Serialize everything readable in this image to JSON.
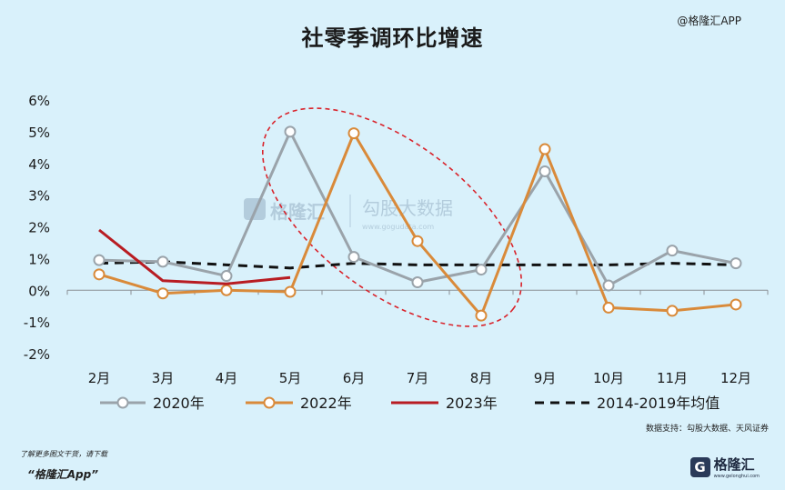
{
  "header": {
    "title": "社零季调环比增速",
    "brand_tag": "@格隆汇APP"
  },
  "watermark": {
    "brand": "格隆汇",
    "site_name": "勾股大数据",
    "site_url": "www.gogudata.com"
  },
  "footer": {
    "hint": "了解更多图文干货，请下载",
    "app_name": "“格隆汇App”",
    "logo_text": "格隆汇",
    "logo_sub": "www.gelonghui.com"
  },
  "chart_data": {
    "type": "line",
    "title": "社零季调环比增速",
    "categories": [
      "2月",
      "3月",
      "4月",
      "5月",
      "6月",
      "7月",
      "8月",
      "9月",
      "10月",
      "11月",
      "12月"
    ],
    "ylim": [
      -2,
      6
    ],
    "yticks": [
      -2,
      -1,
      0,
      1,
      2,
      3,
      4,
      5,
      6
    ],
    "ytick_labels": [
      "-2%",
      "-1%",
      "0%",
      "1%",
      "2%",
      "3%",
      "4%",
      "5%",
      "6%"
    ],
    "grid": false,
    "legend_position": "bottom",
    "series": [
      {
        "name": "2020年",
        "color": "#9aa3aa",
        "marker": "circle",
        "style": "solid",
        "values": [
          0.95,
          0.9,
          0.45,
          5.0,
          1.05,
          0.25,
          0.65,
          3.75,
          0.15,
          1.25,
          0.85
        ]
      },
      {
        "name": "2022年",
        "color": "#d98a3a",
        "marker": "circle",
        "style": "solid",
        "values": [
          0.5,
          -0.1,
          0.0,
          -0.05,
          4.95,
          1.55,
          -0.8,
          4.45,
          -0.55,
          -0.65,
          -0.45
        ]
      },
      {
        "name": "2023年",
        "color": "#b81c22",
        "marker": "none",
        "style": "solid",
        "values": [
          1.9,
          0.3,
          0.2,
          0.4,
          null,
          null,
          null,
          null,
          null,
          null,
          null
        ]
      },
      {
        "name": "2014-2019年均值",
        "color": "#111111",
        "marker": "none",
        "style": "dashed",
        "values": [
          0.85,
          0.9,
          0.8,
          0.7,
          0.85,
          0.8,
          0.8,
          0.8,
          0.8,
          0.85,
          0.8
        ]
      }
    ],
    "annotation": {
      "shape": "dashed-ellipse",
      "color": "#d9232b",
      "highlights": [
        "5月",
        "6月",
        "7月",
        "8月"
      ]
    },
    "source": "数据支持：勾股大数据、天风证券"
  }
}
